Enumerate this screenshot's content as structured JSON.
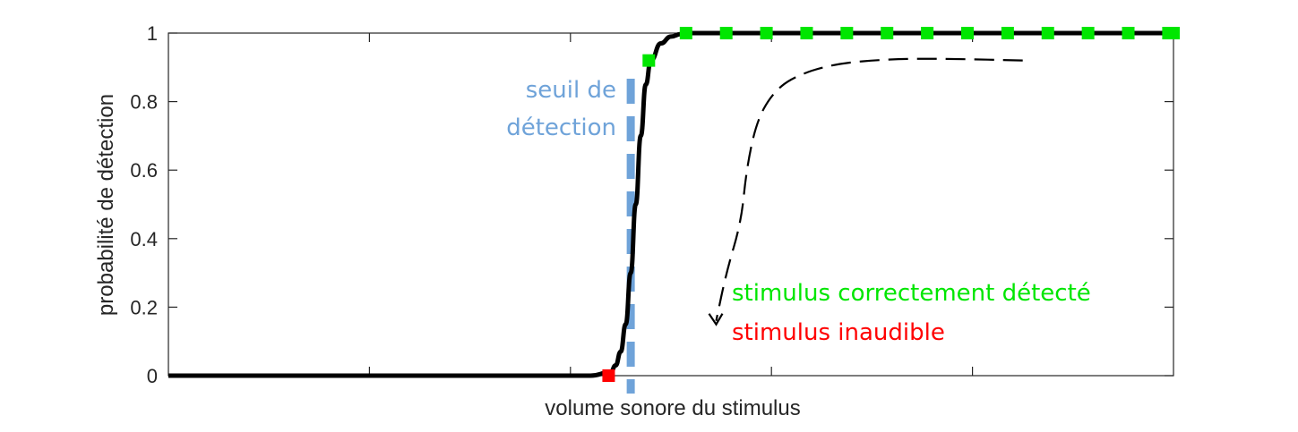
{
  "chart_data": {
    "type": "line",
    "title": "",
    "xlabel": "volume sonore du stimulus",
    "ylabel": "probabilité de détection",
    "xlim": [
      0,
      1
    ],
    "ylim": [
      0,
      1
    ],
    "yticks": [
      0,
      0.2,
      0.4,
      0.6,
      0.8,
      1
    ],
    "ytick_labels": [
      "0",
      "0.2",
      "0.4",
      "0.6",
      "0.8",
      "1"
    ],
    "xticks": [
      0.2,
      0.4,
      0.6,
      0.8
    ],
    "xtick_labels": [],
    "grid": false,
    "curve": {
      "x": [
        0,
        0.05,
        0.1,
        0.15,
        0.2,
        0.25,
        0.3,
        0.35,
        0.4,
        0.42,
        0.44,
        0.445,
        0.45,
        0.455,
        0.46,
        0.465,
        0.47,
        0.475,
        0.48,
        0.49,
        0.5,
        0.51,
        0.52,
        0.54,
        0.56,
        0.6,
        0.7,
        0.8,
        0.9,
        1.0
      ],
      "y": [
        0,
        0,
        0,
        0,
        0,
        0,
        0,
        0,
        0,
        0,
        0.01,
        0.03,
        0.07,
        0.15,
        0.3,
        0.5,
        0.7,
        0.85,
        0.92,
        0.97,
        0.99,
        0.997,
        1,
        1,
        1,
        1,
        1,
        1,
        1,
        1
      ],
      "color": "#000000"
    },
    "detected_points": {
      "label": "stimulus correctement détecté",
      "color": "#00e600",
      "x": [
        0.478,
        0.515,
        0.555,
        0.595,
        0.635,
        0.675,
        0.715,
        0.755,
        0.795,
        0.835,
        0.875,
        0.915,
        0.955,
        0.995,
        1.0
      ],
      "y": [
        0.92,
        1,
        1,
        1,
        1,
        1,
        1,
        1,
        1,
        1,
        1,
        1,
        1,
        1,
        1
      ]
    },
    "inaudible_points": {
      "label": "stimulus inaudible",
      "color": "#ff0000",
      "x": [
        0.438
      ],
      "y": [
        0
      ]
    },
    "threshold": {
      "label_line1": "seuil de",
      "label_line2": "détection",
      "x": 0.46,
      "color": "#6fa3d9"
    },
    "arrow": {
      "x": [
        0.85,
        0.78,
        0.72,
        0.66,
        0.62,
        0.6,
        0.585,
        0.575,
        0.57,
        0.555,
        0.545
      ],
      "y": [
        0.92,
        0.925,
        0.925,
        0.91,
        0.87,
        0.82,
        0.74,
        0.6,
        0.45,
        0.3,
        0.16
      ],
      "color": "#000000"
    }
  }
}
